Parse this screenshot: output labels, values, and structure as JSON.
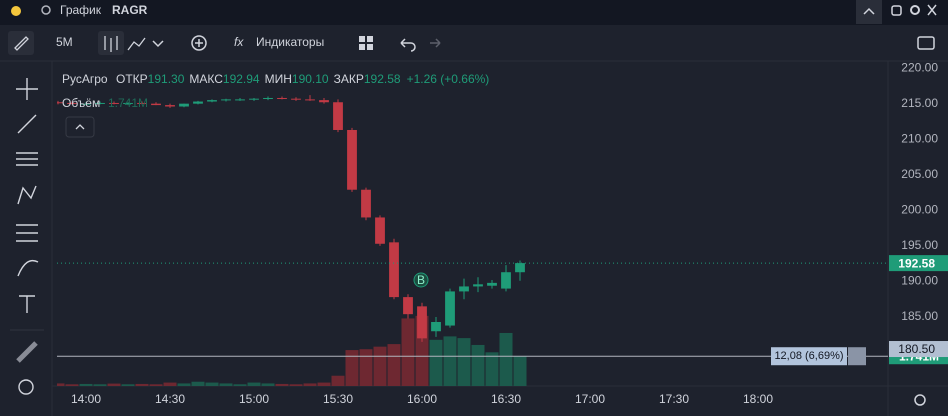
{
  "title_bar": {
    "search": "График",
    "symbol": "RAGR"
  },
  "toolbar": {
    "interval": "5M",
    "indicators": "Индикаторы"
  },
  "chart_data": {
    "type": "candlestick",
    "name": "РусАгро",
    "legend_labels": {
      "open": "ОТКР",
      "high": "МАКС",
      "low": "МИН",
      "close": "ЗАКР"
    },
    "value_labels": {
      "open": "191.30",
      "high": "192.94",
      "low": "190.10",
      "close": "192.58"
    },
    "change": "+1.26 (+0.66%)",
    "x": [
      "13:50",
      "13:55",
      "14:00",
      "14:05",
      "14:10",
      "14:15",
      "14:20",
      "14:25",
      "14:30",
      "14:35",
      "14:40",
      "14:45",
      "14:50",
      "14:55",
      "15:00",
      "15:05",
      "15:10",
      "15:15",
      "15:20",
      "15:25",
      "15:30",
      "15:35",
      "15:40",
      "15:45",
      "15:50",
      "15:55",
      "16:00",
      "16:05",
      "16:10",
      "16:15",
      "16:20",
      "16:25",
      "16:30",
      "16:35"
    ],
    "open": [
      215.2,
      215.1,
      215.0,
      215.0,
      215.1,
      215.0,
      215.1,
      215.0,
      214.8,
      214.6,
      215.0,
      215.3,
      215.5,
      215.6,
      215.6,
      215.7,
      215.8,
      215.7,
      215.6,
      215.5,
      215.2,
      211.3,
      202.9,
      199.0,
      195.5,
      187.8,
      186.5,
      183.0,
      183.8,
      188.6,
      189.3,
      189.4,
      189.0,
      191.3
    ],
    "high": [
      215.4,
      215.3,
      215.2,
      215.3,
      215.3,
      215.2,
      215.3,
      215.2,
      215.0,
      215.0,
      215.4,
      215.6,
      215.7,
      215.8,
      215.8,
      216.0,
      216.0,
      215.9,
      216.2,
      215.8,
      215.6,
      211.6,
      203.2,
      199.3,
      196.0,
      188.2,
      187.0,
      185.0,
      189.0,
      190.4,
      190.6,
      190.2,
      192.3,
      192.94
    ],
    "low": [
      214.9,
      214.9,
      214.8,
      214.9,
      214.9,
      214.8,
      214.9,
      214.8,
      214.4,
      214.5,
      214.9,
      215.2,
      215.3,
      215.4,
      215.4,
      215.5,
      215.6,
      215.4,
      215.4,
      215.0,
      211.0,
      202.6,
      198.6,
      195.0,
      187.5,
      184.8,
      181.5,
      182.2,
      183.5,
      187.5,
      188.5,
      189.0,
      188.6,
      190.1
    ],
    "close": [
      215.1,
      215.0,
      215.0,
      215.1,
      215.0,
      215.1,
      215.0,
      214.8,
      214.6,
      215.0,
      215.3,
      215.5,
      215.6,
      215.6,
      215.7,
      215.8,
      215.7,
      215.6,
      215.5,
      215.2,
      211.3,
      202.9,
      199.0,
      195.3,
      187.8,
      185.4,
      182.0,
      184.3,
      188.6,
      189.3,
      189.6,
      189.8,
      191.3,
      192.58
    ],
    "volume_name": "Объём",
    "volume": [
      0.15,
      0.1,
      0.12,
      0.1,
      0.14,
      0.1,
      0.12,
      0.1,
      0.2,
      0.15,
      0.25,
      0.2,
      0.15,
      0.1,
      0.2,
      0.15,
      0.12,
      0.1,
      0.15,
      0.2,
      0.6,
      2.1,
      2.15,
      2.3,
      2.45,
      3.95,
      4.1,
      2.7,
      2.9,
      2.8,
      2.4,
      1.97,
      3.1,
      1.741
    ],
    "volume_value_label": "1.741M",
    "ylim": [
      175.3,
      221.0
    ],
    "yticks": [
      {
        "value": 220,
        "label": "220.00"
      },
      {
        "value": 215,
        "label": "215.00"
      },
      {
        "value": 210,
        "label": "210.00"
      },
      {
        "value": 205,
        "label": "205.00"
      },
      {
        "value": 200,
        "label": "200.00"
      },
      {
        "value": 195,
        "label": "195.00"
      },
      {
        "value": 190,
        "label": "190.00"
      },
      {
        "value": 185,
        "label": "185.00"
      }
    ],
    "vlim": [
      0,
      19
    ],
    "xlim": [
      "13:45",
      "18:40"
    ],
    "xticks": [
      "14:00",
      "14:30",
      "15:00",
      "15:30",
      "16:00",
      "16:30",
      "17:00",
      "17:30",
      "18:00"
    ],
    "crosshair": {
      "label": "12,08 (6,69%)",
      "price": {
        "value": 180.5,
        "label": "180.50"
      }
    },
    "up_color": "#1f9c78",
    "down_color": "#c23a45",
    "volume_up_color": "#1c5a4c",
    "volume_down_color": "#6e2831"
  }
}
